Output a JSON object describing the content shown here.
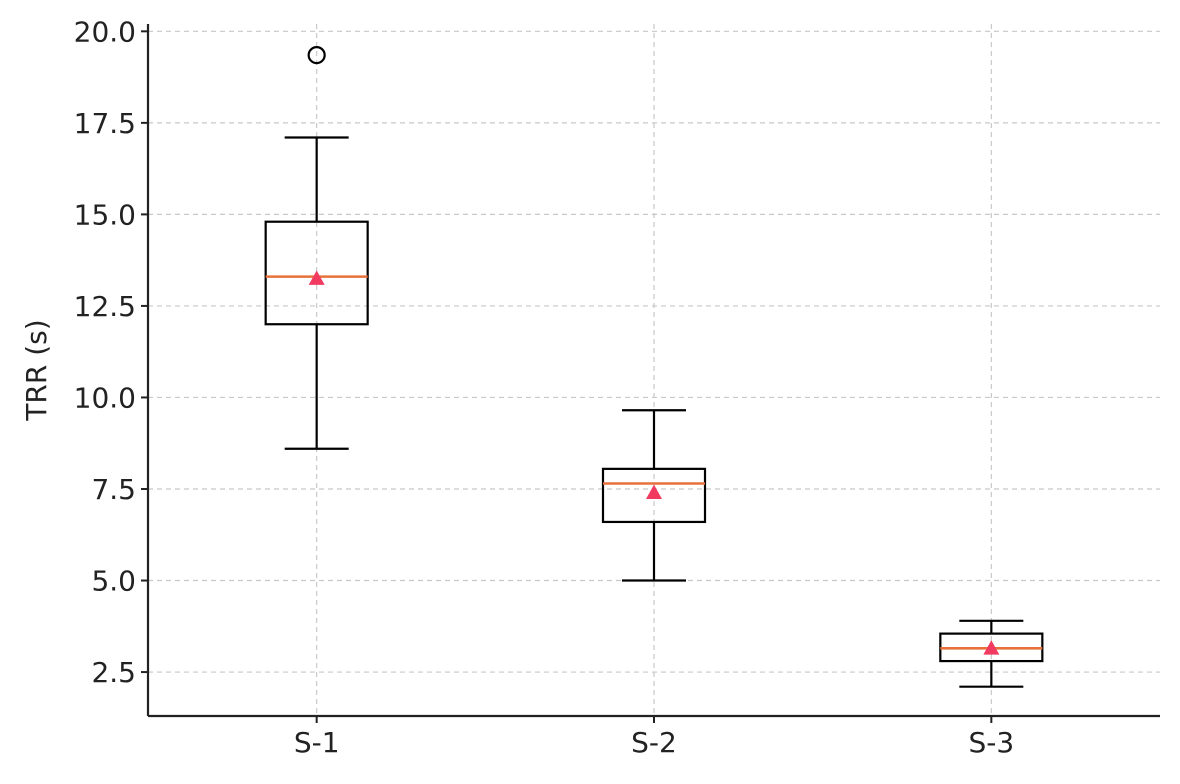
{
  "chart_data": {
    "type": "box",
    "title": "",
    "xlabel": "",
    "ylabel": "TRR (s)",
    "categories": [
      "S-1",
      "S-2",
      "S-3"
    ],
    "ylim": [
      1.3,
      20.2
    ],
    "yticks": [
      2.5,
      5.0,
      7.5,
      10.0,
      12.5,
      15.0,
      17.5,
      20.0
    ],
    "ytick_labels": [
      "2.5",
      "5.0",
      "7.5",
      "10.0",
      "12.5",
      "15.0",
      "17.5",
      "20.0"
    ],
    "grid": true,
    "boxes": [
      {
        "category": "S-1",
        "whisker_low": 8.6,
        "q1": 12.0,
        "median": 13.3,
        "q3": 14.8,
        "whisker_high": 17.1,
        "mean": 13.25,
        "outliers": [
          19.35
        ]
      },
      {
        "category": "S-2",
        "whisker_low": 5.0,
        "q1": 6.6,
        "median": 7.65,
        "q3": 8.05,
        "whisker_high": 9.65,
        "mean": 7.4,
        "outliers": []
      },
      {
        "category": "S-3",
        "whisker_low": 2.1,
        "q1": 2.8,
        "median": 3.15,
        "q3": 3.55,
        "whisker_high": 3.9,
        "mean": 3.15,
        "outliers": []
      }
    ],
    "colors": {
      "box": "#000000",
      "median": "#e8703a",
      "mean": "#f03a5f",
      "grid": "#c8c8c8",
      "axis": "#222222"
    }
  }
}
